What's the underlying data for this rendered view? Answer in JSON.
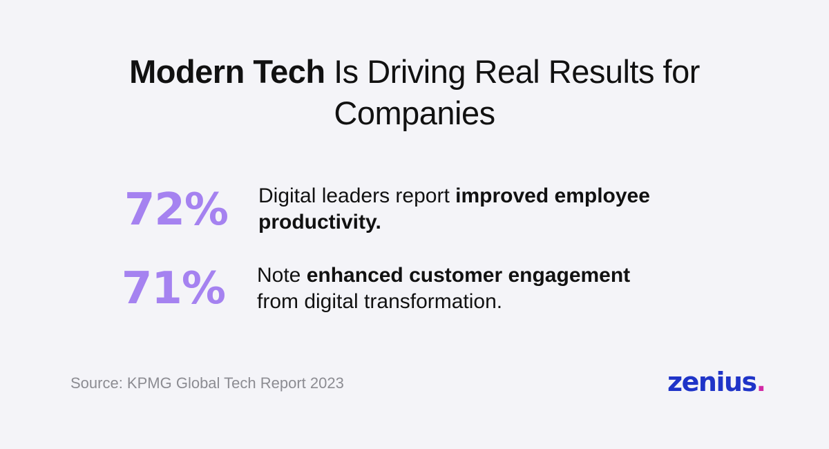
{
  "title": {
    "bold": "Modern Tech",
    "regular": " Is Driving Real Results for",
    "line2": "Companies"
  },
  "stats": [
    {
      "value": "72%",
      "text_before": "Digital leaders report ",
      "text_bold": "improved employee productivity.",
      "text_after": ""
    },
    {
      "value": "71%",
      "text_before": "Note ",
      "text_bold": "enhanced customer engagement",
      "text_after": " from digital transformation."
    }
  ],
  "source": "Source: KPMG Global Tech Report 2023",
  "logo": {
    "text": "zenius",
    "dot": "."
  },
  "colors": {
    "background": "#f4f4f8",
    "stat_purple": "#a582f0",
    "logo_blue": "#1f34c8",
    "logo_dot_magenta": "#d22aa5",
    "source_gray": "#8c8c92"
  }
}
